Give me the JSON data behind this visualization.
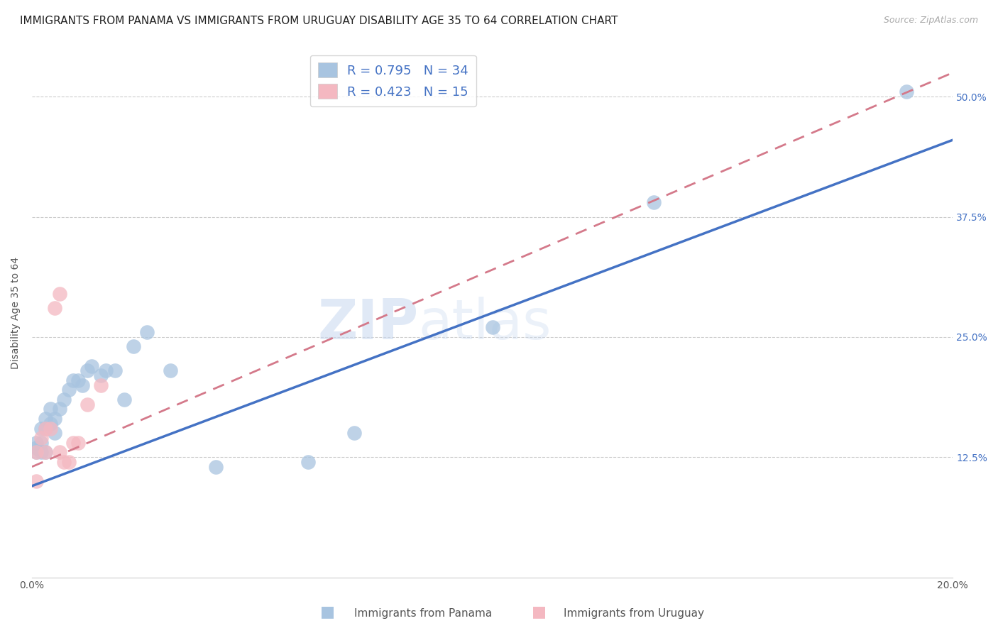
{
  "title": "IMMIGRANTS FROM PANAMA VS IMMIGRANTS FROM URUGUAY DISABILITY AGE 35 TO 64 CORRELATION CHART",
  "source": "Source: ZipAtlas.com",
  "ylabel": "Disability Age 35 to 64",
  "xlim": [
    0.0,
    0.2
  ],
  "ylim": [
    0.0,
    0.55
  ],
  "xticks": [
    0.0,
    0.04,
    0.08,
    0.12,
    0.16,
    0.2
  ],
  "yticks_right": [
    0.125,
    0.25,
    0.375,
    0.5
  ],
  "ytick_labels_right": [
    "12.5%",
    "25.0%",
    "37.5%",
    "50.0%"
  ],
  "panama_color": "#a8c4e0",
  "panama_color_line": "#4472c4",
  "uruguay_color": "#f4b8c1",
  "uruguay_color_line": "#d4798a",
  "panama_R": 0.795,
  "panama_N": 34,
  "uruguay_R": 0.423,
  "uruguay_N": 15,
  "watermark_zip": "ZIP",
  "watermark_atlas": "atlas",
  "legend_label_panama": "Immigrants from Panama",
  "legend_label_uruguay": "Immigrants from Uruguay",
  "panama_x": [
    0.001,
    0.001,
    0.001,
    0.002,
    0.002,
    0.002,
    0.003,
    0.003,
    0.003,
    0.004,
    0.004,
    0.005,
    0.005,
    0.006,
    0.007,
    0.008,
    0.009,
    0.01,
    0.011,
    0.012,
    0.013,
    0.015,
    0.016,
    0.018,
    0.02,
    0.022,
    0.025,
    0.03,
    0.04,
    0.06,
    0.07,
    0.1,
    0.135,
    0.19
  ],
  "panama_y": [
    0.13,
    0.135,
    0.14,
    0.13,
    0.14,
    0.155,
    0.13,
    0.155,
    0.165,
    0.16,
    0.175,
    0.15,
    0.165,
    0.175,
    0.185,
    0.195,
    0.205,
    0.205,
    0.2,
    0.215,
    0.22,
    0.21,
    0.215,
    0.215,
    0.185,
    0.24,
    0.255,
    0.215,
    0.115,
    0.12,
    0.15,
    0.26,
    0.39,
    0.505
  ],
  "uruguay_x": [
    0.001,
    0.001,
    0.002,
    0.003,
    0.003,
    0.004,
    0.005,
    0.006,
    0.006,
    0.007,
    0.008,
    0.009,
    0.01,
    0.012,
    0.015
  ],
  "uruguay_y": [
    0.1,
    0.13,
    0.145,
    0.13,
    0.155,
    0.155,
    0.28,
    0.295,
    0.13,
    0.12,
    0.12,
    0.14,
    0.14,
    0.18,
    0.2
  ],
  "panama_line_x0": 0.0,
  "panama_line_y0": 0.095,
  "panama_line_x1": 0.2,
  "panama_line_y1": 0.455,
  "uruguay_line_x0": 0.0,
  "uruguay_line_y0": 0.115,
  "uruguay_line_x1": 0.2,
  "uruguay_line_y1": 0.525,
  "grid_color": "#cccccc",
  "background_color": "#ffffff",
  "title_fontsize": 11,
  "axis_label_fontsize": 10,
  "tick_fontsize": 10,
  "legend_fontsize": 12
}
